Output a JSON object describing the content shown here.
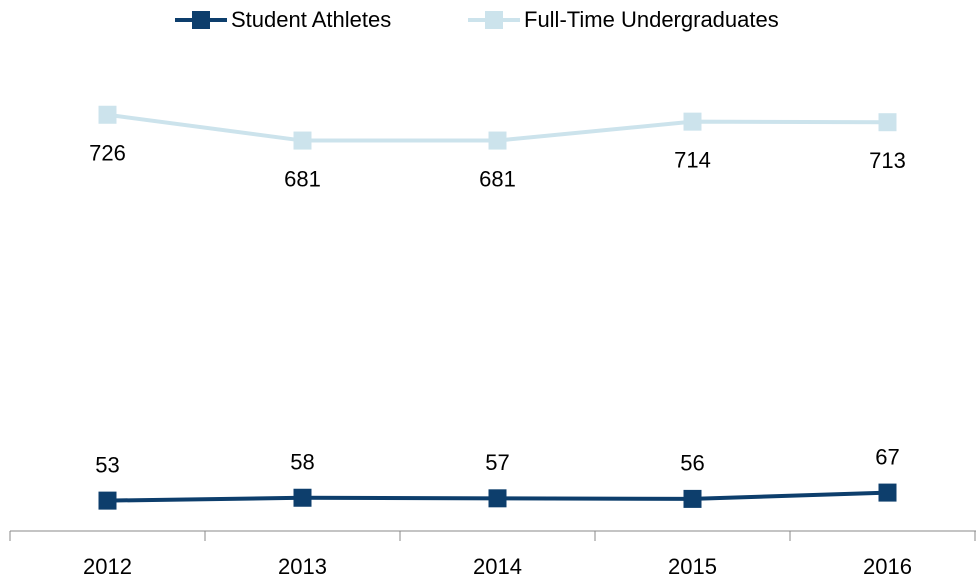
{
  "chart_data": {
    "type": "line",
    "categories": [
      "2012",
      "2013",
      "2014",
      "2015",
      "2016"
    ],
    "series": [
      {
        "name": "Student Athletes",
        "color": "#0d3e6c",
        "values": [
          53,
          58,
          57,
          56,
          67
        ]
      },
      {
        "name": "Full-Time Undergraduates",
        "color": "#cce3ec",
        "values": [
          726,
          681,
          681,
          714,
          713
        ]
      }
    ],
    "ylim": [
      0,
      750
    ],
    "legend": "top"
  }
}
